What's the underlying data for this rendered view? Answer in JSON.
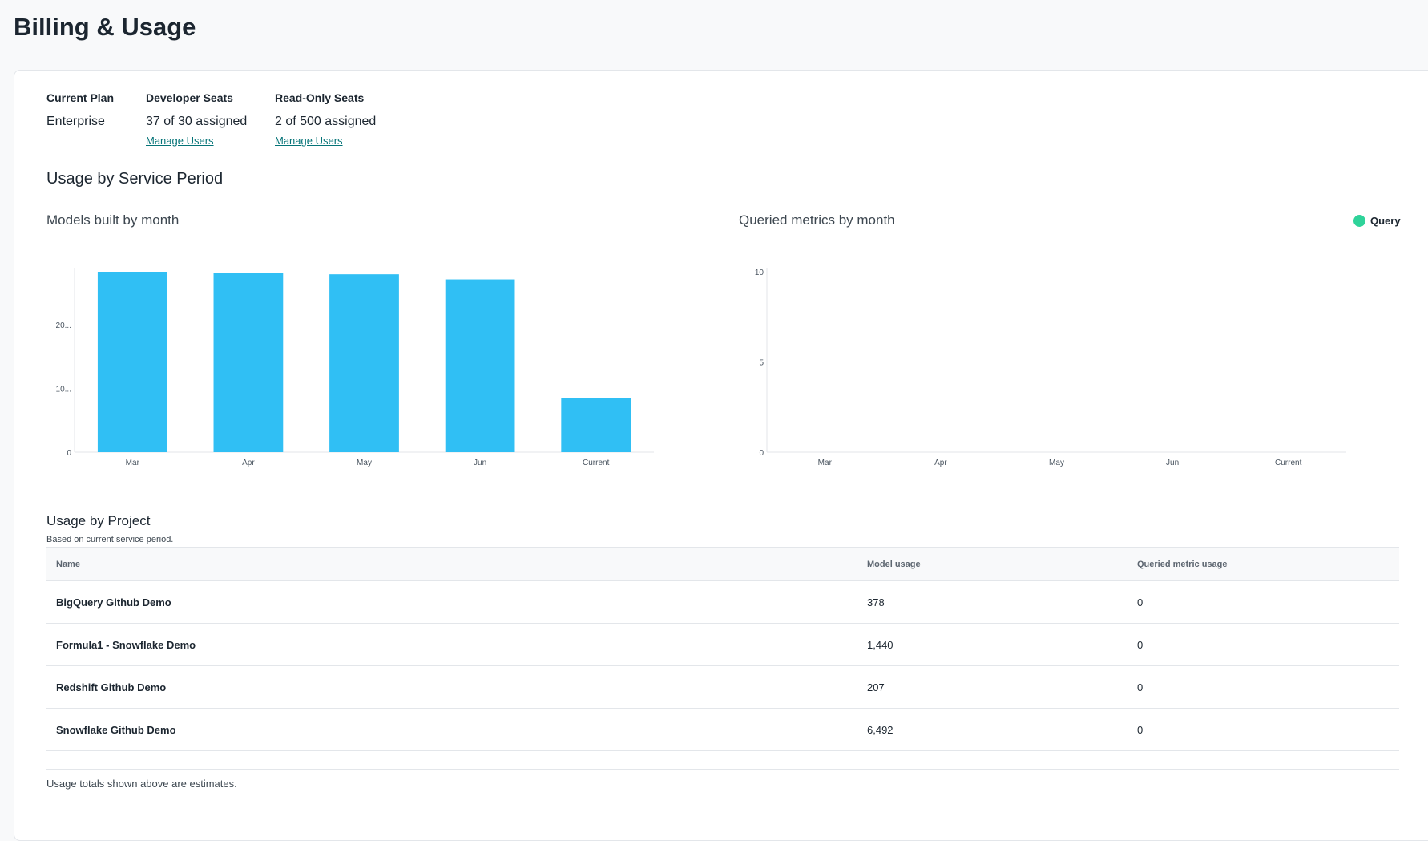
{
  "page_title": "Billing & Usage",
  "plan": {
    "current_plan_label": "Current Plan",
    "current_plan_value": "Enterprise",
    "developer_seats_label": "Developer Seats",
    "developer_seats_value": "37 of 30 assigned",
    "developer_manage_link": "Manage Users",
    "readonly_seats_label": "Read-Only Seats",
    "readonly_seats_value": "2 of 500 assigned",
    "readonly_manage_link": "Manage Users"
  },
  "service_period_heading": "Usage by Service Period",
  "chart_data": [
    {
      "type": "bar",
      "title": "Models built by month",
      "categories": [
        "Mar",
        "Apr",
        "May",
        "Jun",
        "Current"
      ],
      "values": [
        28300,
        28100,
        27900,
        27100,
        8517
      ],
      "ylim": [
        0,
        28300
      ],
      "yticks": [
        "0",
        "10...",
        "20..."
      ],
      "ytick_values": [
        0,
        10000,
        20000
      ],
      "color": "#30bff4",
      "grid": false
    },
    {
      "type": "bar",
      "title": "Queried metrics by month",
      "categories": [
        "Mar",
        "Apr",
        "May",
        "Jun",
        "Current"
      ],
      "series": [
        {
          "name": "Query",
          "values": [
            0,
            0,
            0,
            0,
            0
          ]
        }
      ],
      "ylim": [
        0,
        10
      ],
      "yticks": [
        "0",
        "5",
        "10"
      ],
      "ytick_values": [
        0,
        5,
        10
      ],
      "legend": "top-right",
      "color": "#2fd39a",
      "grid": false
    }
  ],
  "project": {
    "heading": "Usage by Project",
    "subtitle": "Based on current service period.",
    "columns": [
      "Name",
      "Model usage",
      "Queried metric usage"
    ],
    "rows": [
      [
        "BigQuery Github Demo",
        "378",
        "0"
      ],
      [
        "Formula1 - Snowflake Demo",
        "1,440",
        "0"
      ],
      [
        "Redshift Github Demo",
        "207",
        "0"
      ],
      [
        "Snowflake Github Demo",
        "6,492",
        "0"
      ]
    ],
    "footer_note": "Usage totals shown above are estimates."
  }
}
